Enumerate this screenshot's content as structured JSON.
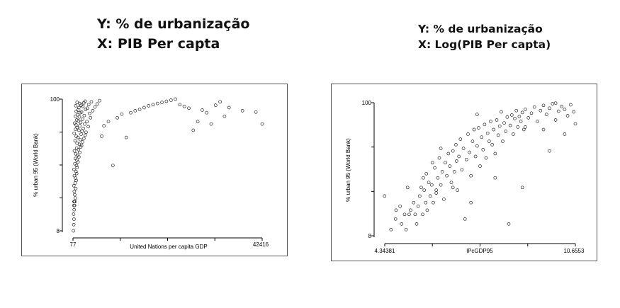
{
  "captions": {
    "left": {
      "line1": "Y: % de urbanização",
      "line2": "X: PIB Per capta"
    },
    "right": {
      "line1": "Y: % de urbanização",
      "line2": "X: Log(PIB Per capta)"
    }
  },
  "colors": {
    "points": "#222222",
    "frame": "#555555",
    "axis": "#000000"
  },
  "chart_data": [
    {
      "type": "scatter",
      "title": "",
      "xlabel": "United Nations per capita GDP",
      "ylabel": "% urban 95 (World Bank)",
      "x_tick_labels": [
        "77",
        "42416"
      ],
      "y_tick_labels": [
        "100",
        "8"
      ],
      "xlim": [
        77,
        42416
      ],
      "ylim": [
        8,
        100
      ],
      "y_scale": "log",
      "grid": false,
      "marker": "hollow circle",
      "points": [
        [
          180,
          8
        ],
        [
          250,
          9
        ],
        [
          300,
          10
        ],
        [
          220,
          11
        ],
        [
          350,
          12
        ],
        [
          280,
          13
        ],
        [
          420,
          13
        ],
        [
          500,
          14
        ],
        [
          320,
          14
        ],
        [
          600,
          15
        ],
        [
          450,
          16
        ],
        [
          380,
          17
        ],
        [
          700,
          18
        ],
        [
          260,
          19
        ],
        [
          550,
          20
        ],
        [
          800,
          21
        ],
        [
          650,
          22
        ],
        [
          400,
          23
        ],
        [
          900,
          24
        ],
        [
          750,
          25
        ],
        [
          300,
          26
        ],
        [
          1000,
          27
        ],
        [
          850,
          28
        ],
        [
          500,
          29
        ],
        [
          1200,
          30
        ],
        [
          950,
          31
        ],
        [
          600,
          32
        ],
        [
          1400,
          33
        ],
        [
          1100,
          34
        ],
        [
          700,
          35
        ],
        [
          1600,
          36
        ],
        [
          400,
          37
        ],
        [
          1300,
          38
        ],
        [
          900,
          39
        ],
        [
          1800,
          40
        ],
        [
          2000,
          41
        ],
        [
          1500,
          42
        ],
        [
          1000,
          43
        ],
        [
          2200,
          44
        ],
        [
          550,
          45
        ],
        [
          1700,
          46
        ],
        [
          2500,
          47
        ],
        [
          1200,
          48
        ],
        [
          800,
          49
        ],
        [
          2800,
          50
        ],
        [
          1900,
          51
        ],
        [
          350,
          52
        ],
        [
          3000,
          53
        ],
        [
          2100,
          54
        ],
        [
          1400,
          55
        ],
        [
          650,
          56
        ],
        [
          2400,
          57
        ],
        [
          1000,
          58
        ],
        [
          3500,
          59
        ],
        [
          1600,
          60
        ],
        [
          750,
          61
        ],
        [
          2700,
          62
        ],
        [
          450,
          63
        ],
        [
          1800,
          64
        ],
        [
          3200,
          65
        ],
        [
          1300,
          66
        ],
        [
          900,
          67
        ],
        [
          2200,
          68
        ],
        [
          4000,
          70
        ],
        [
          1500,
          71
        ],
        [
          600,
          72
        ],
        [
          2600,
          73
        ],
        [
          1100,
          74
        ],
        [
          3800,
          76
        ],
        [
          1700,
          77
        ],
        [
          2000,
          78
        ],
        [
          800,
          79
        ],
        [
          4500,
          80
        ],
        [
          1200,
          81
        ],
        [
          2900,
          82
        ],
        [
          3300,
          84
        ],
        [
          1400,
          85
        ],
        [
          5000,
          86
        ],
        [
          2300,
          87
        ],
        [
          700,
          88
        ],
        [
          1900,
          89
        ],
        [
          3600,
          90
        ],
        [
          5500,
          91
        ],
        [
          1600,
          92
        ],
        [
          2500,
          93
        ],
        [
          1000,
          94
        ],
        [
          4200,
          95
        ],
        [
          2800,
          96
        ],
        [
          6000,
          97
        ],
        [
          350,
          14
        ],
        [
          9000,
          28
        ],
        [
          6500,
          49
        ],
        [
          12000,
          48
        ],
        [
          7000,
          60
        ],
        [
          8000,
          65
        ],
        [
          10000,
          70
        ],
        [
          11000,
          75
        ],
        [
          13000,
          77
        ],
        [
          14000,
          80
        ],
        [
          15000,
          82
        ],
        [
          16000,
          85
        ],
        [
          17000,
          88
        ],
        [
          18000,
          90
        ],
        [
          19000,
          92
        ],
        [
          20000,
          94
        ],
        [
          21000,
          96
        ],
        [
          22000,
          98
        ],
        [
          23000,
          100
        ],
        [
          24000,
          90
        ],
        [
          25000,
          87
        ],
        [
          26000,
          84
        ],
        [
          27000,
          55
        ],
        [
          28000,
          65
        ],
        [
          29000,
          81
        ],
        [
          30000,
          77
        ],
        [
          31000,
          62
        ],
        [
          32000,
          89
        ],
        [
          33000,
          95
        ],
        [
          34000,
          72
        ],
        [
          35000,
          85
        ],
        [
          38000,
          80
        ],
        [
          41000,
          78
        ],
        [
          42416,
          62
        ]
      ]
    },
    {
      "type": "scatter",
      "title": "",
      "xlabel": "lPcGDP95",
      "ylabel": "% urban 95 (World Bank)",
      "x_tick_labels": [
        "4.34381",
        "10.6553"
      ],
      "y_tick_labels": [
        "100",
        "8"
      ],
      "xlim": [
        4.34381,
        10.6553
      ],
      "ylim": [
        8,
        100
      ],
      "y_scale": "log",
      "grid": false,
      "marker": "hollow circle",
      "points": [
        [
          4.34,
          17
        ],
        [
          4.55,
          9
        ],
        [
          4.7,
          11
        ],
        [
          4.72,
          13
        ],
        [
          4.85,
          14
        ],
        [
          5.0,
          12
        ],
        [
          5.05,
          9
        ],
        [
          5.15,
          12
        ],
        [
          5.2,
          13
        ],
        [
          5.3,
          15
        ],
        [
          5.4,
          10
        ],
        [
          5.45,
          14
        ],
        [
          5.5,
          17
        ],
        [
          5.55,
          20
        ],
        [
          5.6,
          12
        ],
        [
          5.62,
          24
        ],
        [
          5.65,
          19
        ],
        [
          5.7,
          15
        ],
        [
          5.72,
          26
        ],
        [
          5.75,
          13
        ],
        [
          5.8,
          22
        ],
        [
          5.85,
          17
        ],
        [
          5.9,
          21
        ],
        [
          5.92,
          32
        ],
        [
          5.95,
          15
        ],
        [
          6.0,
          29
        ],
        [
          6.05,
          19
        ],
        [
          6.1,
          24
        ],
        [
          6.15,
          35
        ],
        [
          6.2,
          21
        ],
        [
          6.25,
          27
        ],
        [
          6.3,
          16
        ],
        [
          6.35,
          32
        ],
        [
          6.4,
          25
        ],
        [
          6.45,
          38
        ],
        [
          6.5,
          30
        ],
        [
          6.55,
          22
        ],
        [
          6.6,
          40
        ],
        [
          6.65,
          27
        ],
        [
          6.7,
          45
        ],
        [
          6.72,
          33
        ],
        [
          6.75,
          19
        ],
        [
          6.8,
          36
        ],
        [
          6.85,
          50
        ],
        [
          6.9,
          28
        ],
        [
          6.95,
          42
        ],
        [
          7.0,
          11
        ],
        [
          7.05,
          34
        ],
        [
          7.1,
          55
        ],
        [
          7.15,
          39
        ],
        [
          7.2,
          25
        ],
        [
          7.25,
          48
        ],
        [
          7.3,
          60
        ],
        [
          7.35,
          36
        ],
        [
          7.4,
          44
        ],
        [
          7.45,
          62
        ],
        [
          7.5,
          30
        ],
        [
          7.55,
          52
        ],
        [
          7.6,
          41
        ],
        [
          7.65,
          66
        ],
        [
          7.7,
          35
        ],
        [
          7.75,
          56
        ],
        [
          7.8,
          48
        ],
        [
          7.85,
          70
        ],
        [
          7.9,
          45
        ],
        [
          7.95,
          60
        ],
        [
          8.0,
          38
        ],
        [
          8.05,
          72
        ],
        [
          8.1,
          54
        ],
        [
          8.15,
          64
        ],
        [
          8.2,
          84
        ],
        [
          8.25,
          48
        ],
        [
          8.3,
          68
        ],
        [
          8.35,
          58
        ],
        [
          8.4,
          76
        ],
        [
          8.45,
          10
        ],
        [
          8.5,
          65
        ],
        [
          8.55,
          79
        ],
        [
          8.6,
          55
        ],
        [
          8.65,
          74
        ],
        [
          8.7,
          86
        ],
        [
          8.75,
          63
        ],
        [
          8.8,
          77
        ],
        [
          8.85,
          70
        ],
        [
          8.9,
          83
        ],
        [
          8.95,
          60
        ],
        [
          9.0,
          88
        ],
        [
          9.1,
          75
        ],
        [
          9.2,
          82
        ],
        [
          9.3,
          92
        ],
        [
          9.4,
          70
        ],
        [
          9.5,
          86
        ],
        [
          9.6,
          95
        ],
        [
          9.7,
          80
        ],
        [
          9.8,
          90
        ],
        [
          9.9,
          98
        ],
        [
          10.0,
          72
        ],
        [
          10.1,
          85
        ],
        [
          10.2,
          93
        ],
        [
          10.3,
          88
        ],
        [
          10.4,
          78
        ],
        [
          10.5,
          96
        ],
        [
          10.6,
          84
        ],
        [
          10.6553,
          67
        ],
        [
          4.9,
          10
        ],
        [
          5.35,
          12
        ],
        [
          6.05,
          18
        ],
        [
          6.6,
          20
        ],
        [
          7.2,
          15
        ],
        [
          8.0,
          24
        ],
        [
          8.9,
          20
        ],
        [
          9.6,
          60
        ],
        [
          9.0,
          63
        ],
        [
          7.4,
          80
        ],
        [
          6.2,
          42
        ],
        [
          9.8,
          40
        ],
        [
          10.3,
          55
        ],
        [
          10.0,
          99
        ],
        [
          5.1,
          20
        ]
      ]
    }
  ]
}
